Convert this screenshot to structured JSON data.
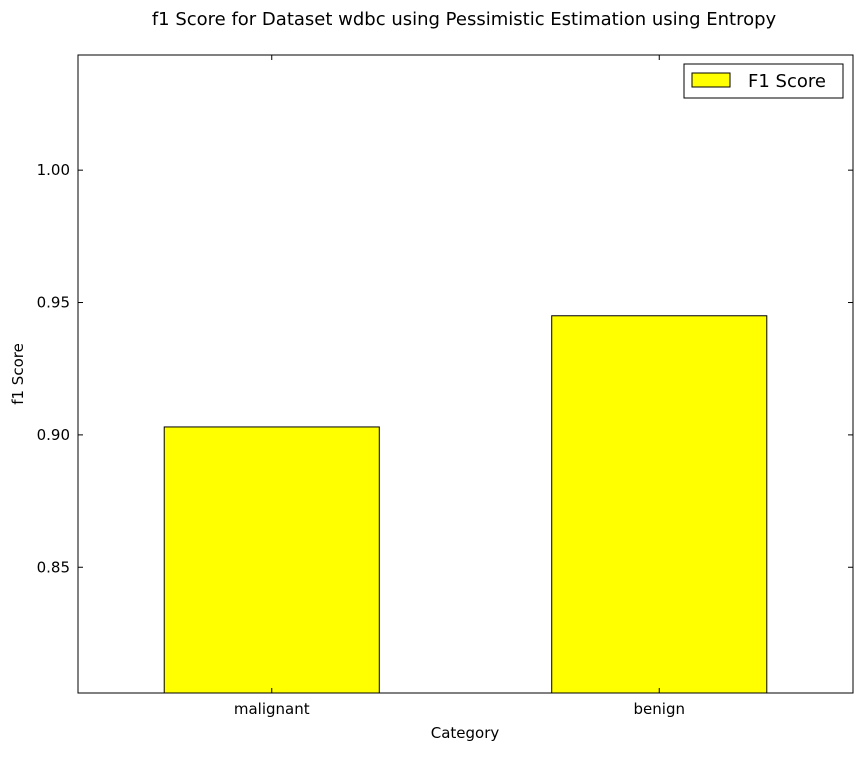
{
  "chart_data": {
    "type": "bar",
    "title": "f1 Score for Dataset wdbc using Pessimistic Estimation using Entropy",
    "xlabel": "Category",
    "ylabel": "f1 Score",
    "categories": [
      "malignant",
      "benign"
    ],
    "series": [
      {
        "name": "F1 Score",
        "values": [
          0.903,
          0.945
        ]
      }
    ],
    "ylim": [
      0.8025,
      1.0435
    ],
    "yticks": [
      0.85,
      0.9,
      0.95,
      1.0
    ],
    "ytick_labels": [
      "0.85",
      "0.90",
      "0.95",
      "1.00"
    ],
    "grid": false,
    "legend_position": "top-right",
    "colors": {
      "bar_fill": "#ffff00",
      "bar_edge": "#000000",
      "axes": "#000000"
    }
  }
}
